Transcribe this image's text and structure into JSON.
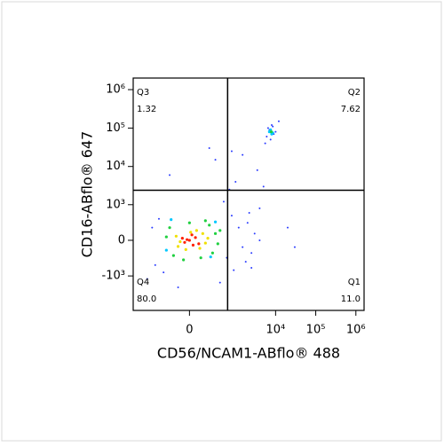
{
  "chart_data": {
    "type": "scatter",
    "scale": "biexponential",
    "xlabel": "CD56/NCAM1-ABflo® 488",
    "ylabel": "CD16-ABflo® 647",
    "xlim": [
      -1800,
      1600000
    ],
    "ylim": [
      -8000,
      2000000
    ],
    "xticks": [
      0,
      {
        "value": 10000,
        "label": "10⁴"
      },
      {
        "value": 100000,
        "label": "10⁵"
      },
      {
        "value": 1000000,
        "label": "10⁶"
      }
    ],
    "yticks": [
      {
        "value": 1000000,
        "label": "10⁶"
      },
      {
        "value": 100000,
        "label": "10⁵"
      },
      {
        "value": 10000,
        "label": "10⁴"
      },
      {
        "value": 1000,
        "label": "10³"
      },
      0,
      {
        "value": -1000,
        "label": "-10³"
      }
    ],
    "gates": {
      "x": 630,
      "y": 2400
    },
    "quadrants": [
      {
        "name": "Q3",
        "percent": "1.32",
        "corner": "top-left"
      },
      {
        "name": "Q2",
        "percent": "7.62",
        "corner": "top-right"
      },
      {
        "name": "Q4",
        "percent": "80.0",
        "corner": "bottom-left"
      },
      {
        "name": "Q1",
        "percent": "11.0",
        "corner": "bottom-right"
      }
    ],
    "series": [
      {
        "color": "#2a3cff",
        "x": [
          -400,
          -500,
          600,
          800,
          1200,
          1500,
          2000,
          2500,
          3000,
          4000,
          1800,
          2200,
          900,
          -300,
          -600,
          500,
          700,
          1000,
          3500,
          5000,
          6000,
          7000,
          8000,
          9000,
          10000,
          7500,
          6500,
          8500,
          5500,
          12000,
          300,
          800,
          1500,
          -200,
          200,
          2500,
          4000,
          20000,
          30000,
          -800,
          -100,
          400
        ],
        "values": [
          400,
          -500,
          -300,
          500,
          200,
          -100,
          300,
          -200,
          100,
          0,
          -400,
          600,
          -700,
          -800,
          200,
          1200,
          2500,
          4000,
          8000,
          3000,
          60000,
          90000,
          120000,
          70000,
          80000,
          50000,
          100000,
          110000,
          40000,
          150000,
          15000,
          25000,
          20000,
          6000,
          30000,
          -600,
          800,
          200,
          -100,
          -1200,
          -2000,
          -1500
        ]
      },
      {
        "color": "#00c8ff",
        "x": [
          7000,
          8000,
          7500,
          8500,
          -250,
          300,
          -180,
          220
        ],
        "values": [
          80000,
          70000,
          90000,
          75000,
          -150,
          320,
          380,
          -280
        ]
      },
      {
        "color": "#20d040",
        "x": [
          -200,
          250,
          300,
          -150,
          200,
          -250,
          100,
          350,
          0,
          -50,
          400,
          150,
          7800
        ],
        "values": [
          200,
          -200,
          100,
          -250,
          250,
          50,
          -300,
          -50,
          300,
          -350,
          150,
          350,
          80000
        ]
      },
      {
        "color": "#f0e000",
        "x": [
          120,
          -100,
          150,
          -120,
          60,
          -30,
          180,
          90,
          -80,
          10
        ],
        "values": [
          100,
          -90,
          -40,
          60,
          150,
          -140,
          30,
          -120,
          -20,
          120
        ]
      },
      {
        "color": "#ff2000",
        "x": [
          0,
          50,
          -40,
          80,
          -60,
          20,
          30,
          -20
        ],
        "values": [
          0,
          40,
          -30,
          -50,
          30,
          80,
          -70,
          10
        ]
      }
    ]
  }
}
